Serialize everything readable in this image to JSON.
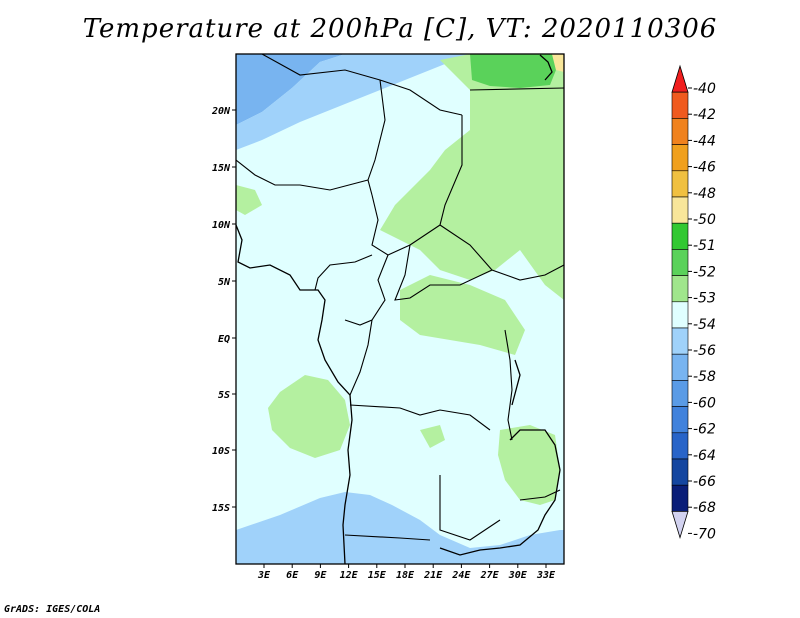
{
  "title": "Temperature at 200hPa [C], VT: 2020110306",
  "credit": "GrADS: IGES/COLA",
  "lat_labels": [
    "20N",
    "15N",
    "10N",
    "5N",
    "EQ",
    "5S",
    "10S",
    "15S"
  ],
  "lon_labels": [
    "3E",
    "6E",
    "9E",
    "12E",
    "15E",
    "18E",
    "21E",
    "24E",
    "27E",
    "30E",
    "33E"
  ],
  "colorbar": {
    "labels": [
      "-40",
      "-42",
      "-44",
      "-46",
      "-48",
      "-50",
      "-51",
      "-52",
      "-53",
      "-54",
      "-56",
      "-58",
      "-60",
      "-62",
      "-64",
      "-66",
      "-68",
      "-70"
    ],
    "colors": [
      "#f01e1e",
      "#f05a1e",
      "#f0821e",
      "#f0a01e",
      "#f0c040",
      "#f8e69a",
      "#32c832",
      "#5ad25a",
      "#a0e68c",
      "#e0ffff",
      "#a0d2fa",
      "#78b4f0",
      "#5a9be6",
      "#4182dc",
      "#2864c8",
      "#1446a0",
      "#0a1e78",
      "#d2d2f0"
    ]
  },
  "fill_colors": {
    "ocean_light": "#e0ffff",
    "light_green": "#b4f0a0",
    "green": "#5ad25a",
    "light_blue": "#a0d2fa",
    "blue": "#78b4f0",
    "pale_yellow": "#f8e69a"
  }
}
